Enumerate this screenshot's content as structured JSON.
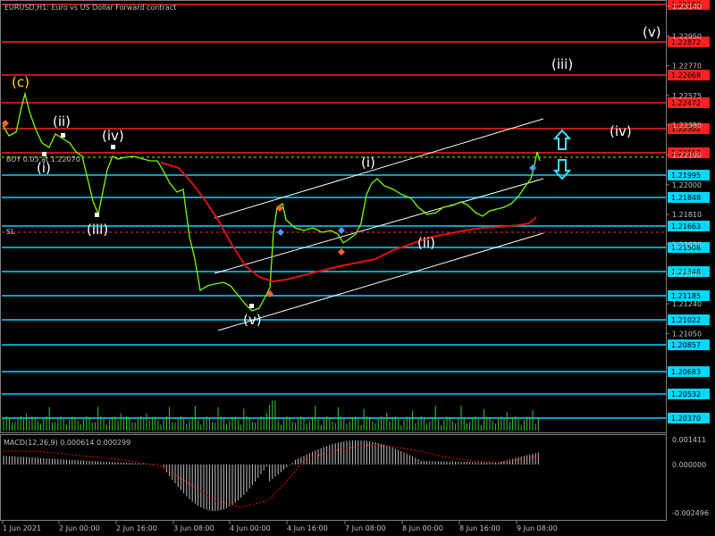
{
  "chart_title": "EURUSD,H1: Euro vs US Dollar Forward contract",
  "buy_label": "BUY 0.03 at 1.22070",
  "sl_label": "SL",
  "macd_label": "MACD(12,26,9) 0.000614 0.000299",
  "price_axis": [
    "1.23140",
    "1.22950",
    "1.22770",
    "1.22575",
    "1.22380",
    "1.22190",
    "1.22000",
    "1.21810",
    "1.21620",
    "1.21430",
    "1.21240",
    "1.21050"
  ],
  "macd_axis": [
    "0.001411",
    "0.000000",
    "-0.002496"
  ],
  "time_axis": [
    "1 Jun 2021",
    "2 Jun 00:00",
    "2 Jun 16:00",
    "3 Jun 08:00",
    "4 Jun 00:00",
    "4 Jun 16:00",
    "7 Jun 08:00",
    "8 Jun 00:00",
    "8 Jun 16:00",
    "9 Jun 08:00"
  ],
  "h_levels": [
    {
      "price": "1.23103",
      "color": "#ff2020",
      "price_color": "#ff2020"
    },
    {
      "price": "1.22872",
      "color": "#ff2020",
      "price_color": "#ff2020"
    },
    {
      "price": "1.22668",
      "color": "#ff2020",
      "price_color": "#ff2020"
    },
    {
      "price": "1.22472",
      "color": "#ff2020",
      "price_color": "#ff2020"
    },
    {
      "price": "1.22302",
      "color": "#ff2020",
      "price_color": "#ff2020"
    },
    {
      "price": "1.22153",
      "color": "#ff2020",
      "price_color": "#ff2020"
    },
    {
      "price": "1.21995",
      "color": "#00d8ff",
      "price_color": "#00d8ff"
    },
    {
      "price": "1.21848",
      "color": "#00d8ff",
      "price_color": "#00d8ff"
    },
    {
      "price": "1.21663",
      "color": "#00d8ff",
      "price_color": "#00d8ff"
    },
    {
      "price": "1.21508",
      "color": "#00d8ff",
      "price_color": "#00d8ff"
    },
    {
      "price": "1.21348",
      "color": "#00d8ff",
      "price_color": "#00d8ff"
    },
    {
      "price": "1.21185",
      "color": "#00d8ff",
      "price_color": "#00d8ff"
    },
    {
      "price": "1.21022",
      "color": "#00d8ff",
      "price_color": "#00d8ff"
    },
    {
      "price": "1.20857",
      "color": "#00d8ff",
      "price_color": "#00d8ff"
    },
    {
      "price": "1.20683",
      "color": "#00d8ff",
      "price_color": "#00d8ff"
    },
    {
      "price": "1.20532",
      "color": "#00d8ff",
      "price_color": "#00d8ff"
    },
    {
      "price": "1.20370",
      "color": "#00d8ff",
      "price_color": "#00d8ff"
    }
  ],
  "wave_labels": [
    {
      "text": "(c)",
      "style": "wave-y",
      "name": "wave-label-c"
    },
    {
      "text": "(ii)",
      "style": "wave",
      "name": "wave-label-ii-left"
    },
    {
      "text": "(i)",
      "style": "wave",
      "name": "wave-label-i-left"
    },
    {
      "text": "(iv)",
      "style": "wave",
      "name": "wave-label-iv-left"
    },
    {
      "text": "(iii)",
      "style": "wave",
      "name": "wave-label-iii-left"
    },
    {
      "text": "(v)",
      "style": "wave",
      "name": "wave-label-v-bottom"
    },
    {
      "text": "(i)",
      "style": "wave",
      "name": "wave-label-i-mid"
    },
    {
      "text": "(ii)",
      "style": "wave",
      "name": "wave-label-ii-mid"
    },
    {
      "text": "(iii)",
      "style": "wave",
      "name": "wave-label-iii-right"
    },
    {
      "text": "(iv)",
      "style": "wave",
      "name": "wave-label-iv-right"
    },
    {
      "text": "(v)",
      "style": "wave",
      "name": "wave-label-v-right"
    }
  ],
  "colors": {
    "background": "#000000",
    "candle": "#7cfc00",
    "moving_average": "#e01010",
    "channel": "#ffffff",
    "volume": "#32cd32",
    "macd_hist": "#c0c0c0",
    "macd_signal": "#ff0000",
    "arrow": "#40e0ff"
  }
}
